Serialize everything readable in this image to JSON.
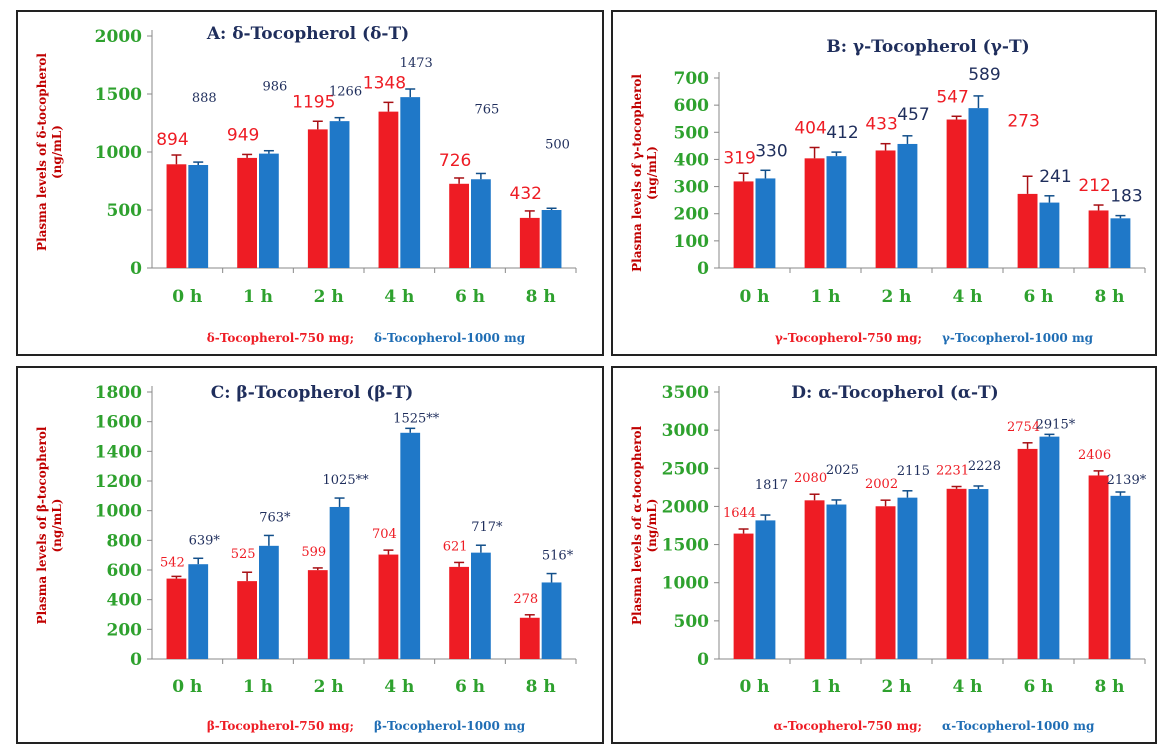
{
  "chart_data": [
    {
      "type": "bar",
      "title": "A: δ-Tocopherol (δ-T)",
      "ylabel": "Plasma levels of δ-tocopherol (ng/mL)",
      "categories": [
        "0 h",
        "1 h",
        "2 h",
        "4 h",
        "6 h",
        "8 h"
      ],
      "ylim": [
        0,
        2000
      ],
      "yticks": [
        0,
        500,
        1000,
        1500,
        2000
      ],
      "series": [
        {
          "name": "δ-Tocopherol-750 mg;",
          "color": "#ee1c24",
          "values": [
            894,
            949,
            1195,
            1348,
            726,
            432
          ],
          "errors": [
            80,
            30,
            70,
            80,
            50,
            60
          ],
          "labels": [
            "894",
            "949",
            "1195",
            "1348",
            "726",
            "432"
          ]
        },
        {
          "name": "δ-Tocopherol-1000 mg",
          "color": "#1f78c8",
          "values": [
            888,
            986,
            1266,
            1473,
            765,
            500
          ],
          "errors": [
            25,
            25,
            30,
            70,
            50,
            15
          ],
          "labels": [
            "888",
            "986",
            "1266",
            "1473",
            "765",
            "500"
          ]
        }
      ],
      "legend": "bottom"
    },
    {
      "type": "bar",
      "title": "B: γ-Tocopherol (γ-T)",
      "ylabel": "Plasma levels of γ-tocopherol (ng/mL)",
      "categories": [
        "0 h",
        "1 h",
        "2 h",
        "4 h",
        "6 h",
        "8 h"
      ],
      "ylim": [
        0,
        700
      ],
      "yticks": [
        0,
        100,
        200,
        300,
        400,
        500,
        600,
        700
      ],
      "series": [
        {
          "name": "γ-Tocopherol-750 mg;",
          "color": "#ee1c24",
          "values": [
            319,
            404,
            433,
            547,
            273,
            212
          ],
          "errors": [
            30,
            40,
            25,
            12,
            65,
            20
          ],
          "labels": [
            "319",
            "404",
            "433",
            "547",
            "273",
            "212"
          ]
        },
        {
          "name": "γ-Tocopherol-1000 mg",
          "color": "#1f78c8",
          "values": [
            330,
            412,
            457,
            589,
            241,
            183
          ],
          "errors": [
            30,
            15,
            30,
            45,
            25,
            10
          ],
          "labels": [
            "330",
            "412",
            "457",
            "589",
            "241",
            "183"
          ]
        }
      ],
      "legend": "bottom"
    },
    {
      "type": "bar",
      "title": "C: β-Tocopherol (β-T)",
      "ylabel": "Plasma levels of β-tocopherol (ng/mL)",
      "categories": [
        "0 h",
        "1 h",
        "2 h",
        "4 h",
        "6 h",
        "8 h"
      ],
      "ylim": [
        0,
        1800
      ],
      "yticks": [
        0,
        200,
        400,
        600,
        800,
        1000,
        1200,
        1400,
        1600,
        1800
      ],
      "series": [
        {
          "name": "β-Tocopherol-750 mg;",
          "color": "#ee1c24",
          "values": [
            542,
            525,
            599,
            704,
            621,
            278
          ],
          "errors": [
            15,
            60,
            15,
            30,
            30,
            20
          ],
          "labels": [
            "542",
            "525",
            "599",
            "704",
            "621",
            "278"
          ]
        },
        {
          "name": "β-Tocopherol-1000 mg",
          "color": "#1f78c8",
          "values": [
            639,
            763,
            1025,
            1525,
            717,
            516
          ],
          "errors": [
            40,
            70,
            60,
            30,
            50,
            60
          ],
          "labels": [
            "639*",
            "763*",
            "1025**",
            "1525**",
            "717*",
            "516*"
          ]
        }
      ],
      "legend": "bottom"
    },
    {
      "type": "bar",
      "title": "D: α-Tocopherol (α-T)",
      "ylabel": "Plasma levels of α-tocopherol (ng/mL)",
      "categories": [
        "0 h",
        "1 h",
        "2 h",
        "4 h",
        "6 h",
        "8 h"
      ],
      "ylim": [
        0,
        3500
      ],
      "yticks": [
        0,
        500,
        1000,
        1500,
        2000,
        2500,
        3000,
        3500
      ],
      "series": [
        {
          "name": "α-Tocopherol-750 mg;",
          "color": "#ee1c24",
          "values": [
            1644,
            2080,
            2002,
            2231,
            2754,
            2406
          ],
          "errors": [
            60,
            80,
            80,
            30,
            80,
            60
          ],
          "labels": [
            "1644",
            "2080",
            "2002",
            "2231",
            "2754",
            "2406"
          ]
        },
        {
          "name": "α-Tocopherol-1000 mg",
          "color": "#1f78c8",
          "values": [
            1817,
            2025,
            2115,
            2228,
            2915,
            2139
          ],
          "errors": [
            70,
            60,
            90,
            40,
            30,
            50
          ],
          "labels": [
            "1817",
            "2025",
            "2115",
            "2228",
            "2915*",
            "2139*"
          ]
        }
      ],
      "legend": "bottom"
    }
  ]
}
